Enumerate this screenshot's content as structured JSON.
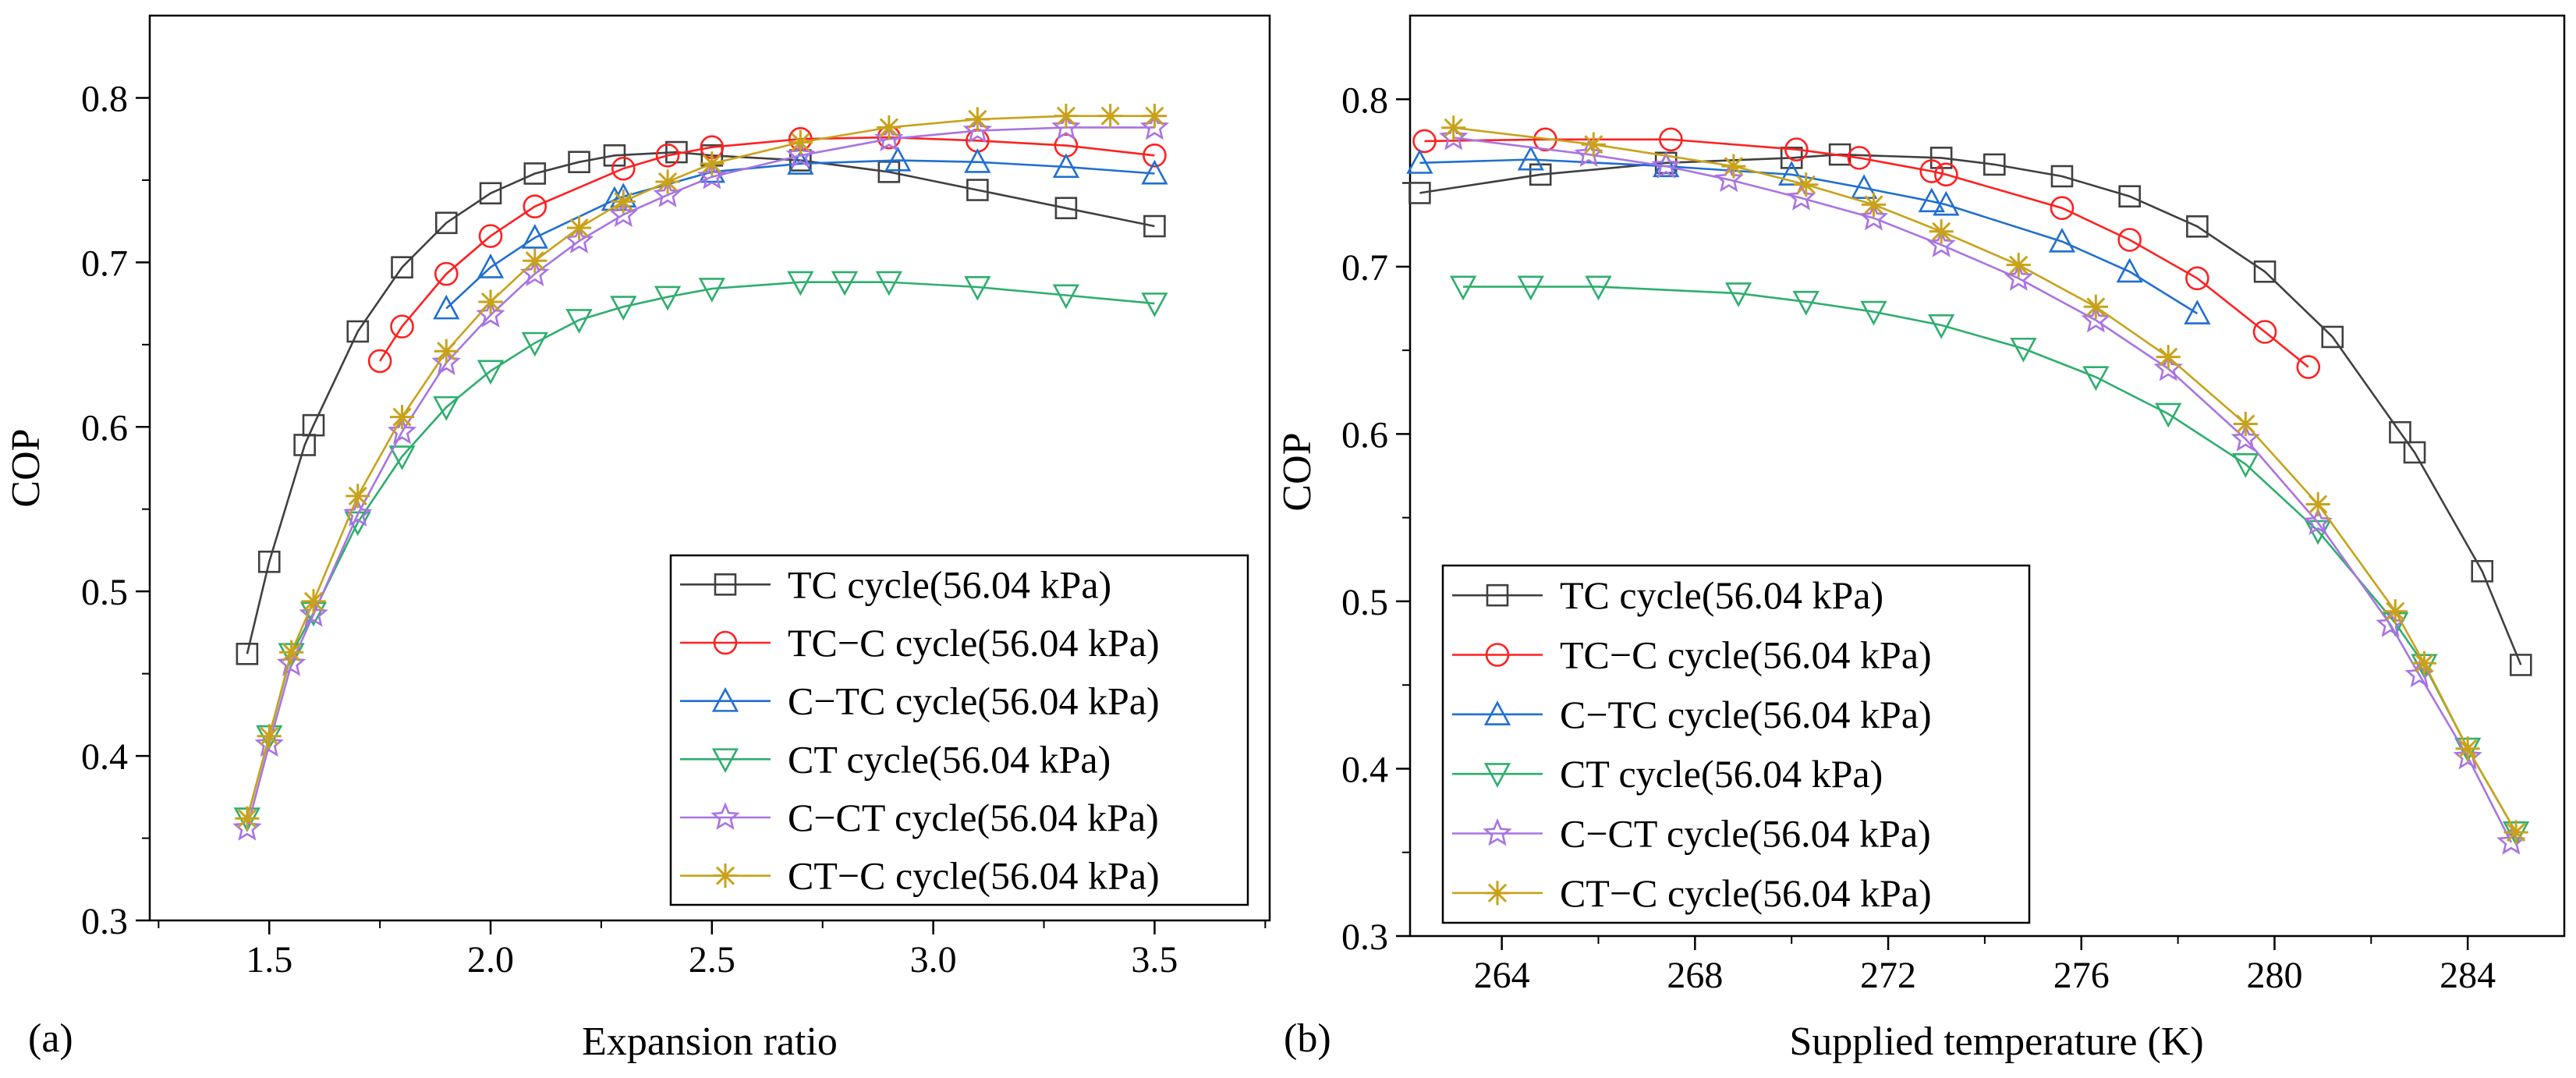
{
  "chart_data": [
    {
      "type": "line",
      "panel_label": "(a)",
      "xlabel": "Expansion ratio",
      "ylabel": "COP",
      "xlim": [
        1.23,
        3.76
      ],
      "ylim": [
        0.3,
        0.85
      ],
      "xticks": [
        1.5,
        2.0,
        2.5,
        3.0,
        3.5
      ],
      "xtick_labels": [
        "1.5",
        "2.0",
        "2.5",
        "3.0",
        "3.5"
      ],
      "yticks": [
        0.3,
        0.4,
        0.5,
        0.6,
        0.7,
        0.8
      ],
      "ytick_labels": [
        "0.3",
        "0.4",
        "0.5",
        "0.6",
        "0.7",
        "0.8"
      ],
      "legend_position": "bottom-right",
      "series": [
        {
          "name": "TC cycle(56.04 kPa)",
          "color": "#404040",
          "marker": "square",
          "x": [
            1.45,
            1.5,
            1.58,
            1.6,
            1.7,
            1.8,
            1.9,
            2.0,
            2.1,
            2.2,
            2.28,
            2.42,
            2.5,
            2.7,
            2.9,
            3.1,
            3.3,
            3.5
          ],
          "y": [
            0.462,
            0.518,
            0.589,
            0.601,
            0.658,
            0.697,
            0.724,
            0.742,
            0.754,
            0.761,
            0.765,
            0.767,
            0.765,
            0.762,
            0.755,
            0.744,
            0.733,
            0.722
          ]
        },
        {
          "name": "TC−C cycle(56.04 kPa)",
          "color": "#ff2020",
          "marker": "circle",
          "x": [
            1.75,
            1.8,
            1.9,
            2.0,
            2.1,
            2.3,
            2.4,
            2.5,
            2.7,
            2.9,
            3.1,
            3.3,
            3.5
          ],
          "y": [
            0.64,
            0.661,
            0.693,
            0.716,
            0.734,
            0.757,
            0.765,
            0.77,
            0.775,
            0.776,
            0.774,
            0.771,
            0.765
          ]
        },
        {
          "name": "C−TC cycle(56.04 kPa)",
          "color": "#1f6fd1",
          "marker": "triangle-up",
          "x": [
            1.9,
            2.0,
            2.1,
            2.28,
            2.3,
            2.5,
            2.7,
            2.92,
            3.1,
            3.3,
            3.5
          ],
          "y": [
            0.672,
            0.697,
            0.715,
            0.738,
            0.74,
            0.755,
            0.76,
            0.762,
            0.761,
            0.758,
            0.754
          ]
        },
        {
          "name": "CT cycle(56.04 kPa)",
          "color": "#2eae6e",
          "marker": "triangle-down",
          "x": [
            1.45,
            1.5,
            1.55,
            1.6,
            1.7,
            1.8,
            1.9,
            2.0,
            2.1,
            2.2,
            2.3,
            2.4,
            2.5,
            2.7,
            2.8,
            2.9,
            3.1,
            3.3,
            3.5
          ],
          "y": [
            0.362,
            0.412,
            0.462,
            0.487,
            0.542,
            0.582,
            0.612,
            0.634,
            0.651,
            0.665,
            0.673,
            0.679,
            0.684,
            0.688,
            0.688,
            0.688,
            0.685,
            0.68,
            0.675
          ]
        },
        {
          "name": "C−CT cycle(56.04 kPa)",
          "color": "#a874e3",
          "marker": "star",
          "x": [
            1.45,
            1.5,
            1.55,
            1.6,
            1.7,
            1.8,
            1.9,
            2.0,
            2.1,
            2.2,
            2.3,
            2.4,
            2.5,
            2.7,
            2.9,
            3.1,
            3.3,
            3.5
          ],
          "y": [
            0.356,
            0.407,
            0.456,
            0.486,
            0.547,
            0.597,
            0.639,
            0.668,
            0.693,
            0.713,
            0.729,
            0.741,
            0.752,
            0.765,
            0.775,
            0.78,
            0.782,
            0.782
          ]
        },
        {
          "name": "CT−C cycle(56.04 kPa)",
          "color": "#c8a21a",
          "marker": "asterisk",
          "x": [
            1.45,
            1.5,
            1.55,
            1.6,
            1.7,
            1.8,
            1.9,
            2.0,
            2.1,
            2.2,
            2.3,
            2.4,
            2.5,
            2.7,
            2.9,
            3.1,
            3.3,
            3.4,
            3.5
          ],
          "y": [
            0.362,
            0.412,
            0.463,
            0.494,
            0.558,
            0.606,
            0.646,
            0.676,
            0.701,
            0.721,
            0.737,
            0.749,
            0.76,
            0.773,
            0.782,
            0.787,
            0.789,
            0.789,
            0.789
          ]
        }
      ]
    },
    {
      "type": "line",
      "panel_label": "(b)",
      "xlabel": "Supplied temperature (K)",
      "ylabel": "COP",
      "xlim": [
        262.1,
        286.0
      ],
      "ylim": [
        0.3,
        0.85
      ],
      "xticks": [
        264,
        268,
        272,
        276,
        280,
        284
      ],
      "xtick_labels": [
        "264",
        "268",
        "272",
        "276",
        "280",
        "284"
      ],
      "yticks": [
        0.3,
        0.4,
        0.5,
        0.6,
        0.7,
        0.8
      ],
      "ytick_labels": [
        "0.3",
        "0.4",
        "0.5",
        "0.6",
        "0.7",
        "0.8"
      ],
      "legend_position": "bottom-left",
      "series": [
        {
          "name": "TC cycle(56.04 kPa)",
          "color": "#404040",
          "marker": "square",
          "x": [
            262.3,
            264.8,
            267.4,
            270.0,
            271.0,
            273.1,
            274.2,
            275.6,
            277.0,
            278.4,
            279.8,
            281.2,
            282.6,
            282.9,
            284.3,
            285.1
          ],
          "y": [
            0.744,
            0.755,
            0.762,
            0.765,
            0.767,
            0.765,
            0.761,
            0.754,
            0.742,
            0.724,
            0.697,
            0.658,
            0.601,
            0.589,
            0.518,
            0.462
          ]
        },
        {
          "name": "TC−C cycle(56.04 kPa)",
          "color": "#ff2020",
          "marker": "circle",
          "x": [
            262.4,
            264.9,
            267.5,
            270.1,
            271.4,
            272.9,
            273.2,
            275.6,
            277.0,
            278.4,
            279.8,
            280.7
          ],
          "y": [
            0.775,
            0.776,
            0.776,
            0.77,
            0.765,
            0.757,
            0.755,
            0.735,
            0.716,
            0.693,
            0.661,
            0.64
          ]
        },
        {
          "name": "C−TC cycle(56.04 kPa)",
          "color": "#1f6fd1",
          "marker": "triangle-up",
          "x": [
            262.3,
            264.6,
            267.4,
            270.0,
            271.5,
            272.9,
            273.2,
            275.6,
            277.0,
            278.4
          ],
          "y": [
            0.762,
            0.764,
            0.76,
            0.755,
            0.747,
            0.739,
            0.737,
            0.715,
            0.697,
            0.672
          ]
        },
        {
          "name": "CT cycle(56.04 kPa)",
          "color": "#2eae6e",
          "marker": "triangle-down",
          "x": [
            263.2,
            264.6,
            266.0,
            268.9,
            270.3,
            271.7,
            273.1,
            274.8,
            276.3,
            277.8,
            279.4,
            280.9,
            282.5,
            283.1,
            284.0,
            285.0
          ],
          "y": [
            0.688,
            0.688,
            0.688,
            0.684,
            0.679,
            0.673,
            0.665,
            0.651,
            0.634,
            0.612,
            0.582,
            0.542,
            0.487,
            0.462,
            0.412,
            0.362
          ]
        },
        {
          "name": "C−CT cycle(56.04 kPa)",
          "color": "#a874e3",
          "marker": "star",
          "x": [
            263.0,
            265.8,
            267.4,
            268.7,
            270.2,
            271.7,
            273.1,
            274.7,
            276.3,
            277.8,
            279.4,
            280.9,
            282.4,
            283.0,
            284.0,
            284.9
          ],
          "y": [
            0.777,
            0.767,
            0.76,
            0.752,
            0.741,
            0.729,
            0.713,
            0.693,
            0.668,
            0.639,
            0.597,
            0.547,
            0.486,
            0.456,
            0.407,
            0.356
          ]
        },
        {
          "name": "CT−C cycle(56.04 kPa)",
          "color": "#c8a21a",
          "marker": "asterisk",
          "x": [
            263.0,
            265.9,
            268.8,
            270.3,
            271.7,
            273.1,
            274.7,
            276.3,
            277.8,
            279.4,
            280.9,
            282.5,
            283.1,
            284.0,
            285.0
          ],
          "y": [
            0.783,
            0.773,
            0.76,
            0.749,
            0.737,
            0.721,
            0.701,
            0.676,
            0.646,
            0.606,
            0.558,
            0.494,
            0.463,
            0.412,
            0.362
          ]
        }
      ]
    }
  ]
}
